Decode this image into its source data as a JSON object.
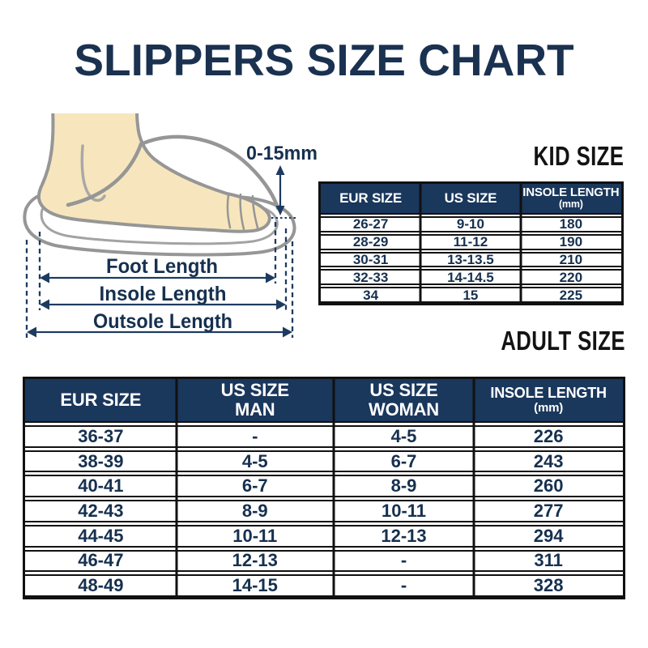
{
  "title": "SLIPPERS SIZE CHART",
  "diagram": {
    "gap_label": "0-15mm",
    "foot_length_label": "Foot Length",
    "insole_length_label": "Insole Length",
    "outsole_length_label": "Outsole Length"
  },
  "kid_table": {
    "heading": "KID SIZE",
    "columns": [
      {
        "line1": "EUR SIZE",
        "line2": ""
      },
      {
        "line1": "US SIZE",
        "line2": ""
      },
      {
        "line1": "INSOLE LENGTH",
        "line2": "(mm)"
      }
    ],
    "rows": [
      [
        "26-27",
        "9-10",
        "180"
      ],
      [
        "28-29",
        "11-12",
        "190"
      ],
      [
        "30-31",
        "13-13.5",
        "210"
      ],
      [
        "32-33",
        "14-14.5",
        "220"
      ],
      [
        "34",
        "15",
        "225"
      ]
    ]
  },
  "adult_table": {
    "heading": "ADULT SIZE",
    "columns": [
      {
        "line1": "EUR SIZE",
        "line2": ""
      },
      {
        "line1": "US SIZE",
        "line2": "MAN"
      },
      {
        "line1": "US SIZE",
        "line2": "WOMAN"
      },
      {
        "line1": "INSOLE LENGTH",
        "line2": "(mm)"
      }
    ],
    "rows": [
      [
        "36-37",
        "-",
        "4-5",
        "226"
      ],
      [
        "38-39",
        "4-5",
        "6-7",
        "243"
      ],
      [
        "40-41",
        "6-7",
        "8-9",
        "260"
      ],
      [
        "42-43",
        "8-9",
        "10-11",
        "277"
      ],
      [
        "44-45",
        "10-11",
        "12-13",
        "294"
      ],
      [
        "46-47",
        "12-13",
        "-",
        "311"
      ],
      [
        "48-49",
        "14-15",
        "-",
        "328"
      ]
    ]
  },
  "colors": {
    "navy_text": "#16304f",
    "header_background": "#1a375c",
    "border_black": "#111111",
    "foot_skin": "#f7e6bd",
    "outline_gray": "#969696"
  }
}
